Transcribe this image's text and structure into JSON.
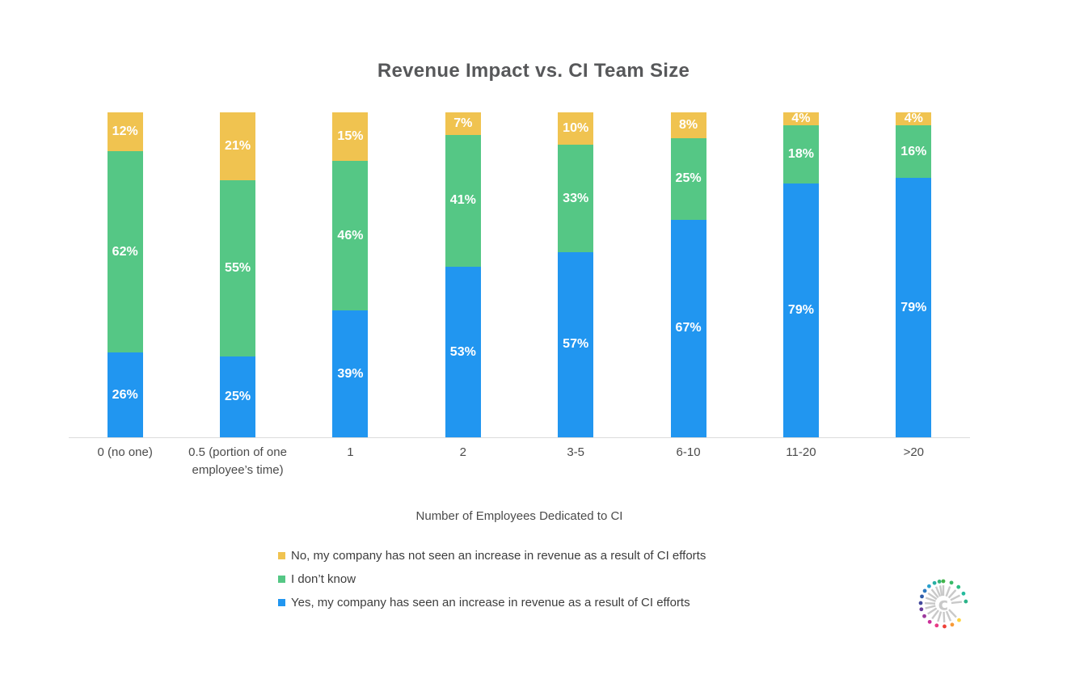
{
  "title": "Revenue Impact vs. CI Team Size",
  "chart_data": {
    "type": "bar",
    "variant": "stacked-percent-column",
    "title": "Revenue Impact vs. CI Team Size",
    "xlabel": "Number of Employees Dedicated to CI",
    "ylabel": "",
    "ylim": [
      0,
      100
    ],
    "grid": false,
    "value_suffix": "%",
    "legend_position": "bottom-left",
    "legend_order": [
      2,
      1,
      0
    ],
    "categories": [
      "0 (no one)",
      "0.5 (portion of one employee’s time)",
      "1",
      "2",
      "3-5",
      "6-10",
      "11-20",
      ">20"
    ],
    "series": [
      {
        "name": "Yes, my company has seen an increase in revenue as a result of CI efforts",
        "color": "#2196f0",
        "values": [
          26,
          25,
          39,
          53,
          57,
          67,
          79,
          79
        ]
      },
      {
        "name": "I don’t know",
        "color": "#55c785",
        "values": [
          62,
          55,
          46,
          41,
          33,
          25,
          18,
          16
        ]
      },
      {
        "name": "No, my company has not seen an increase in revenue as a result of CI efforts",
        "color": "#f0c350",
        "values": [
          12,
          21,
          15,
          7,
          10,
          8,
          4,
          4
        ]
      }
    ]
  },
  "logo": {
    "name": "crayon-starburst-logo",
    "ray_color": "#c9c9c9",
    "center_glyph": "c",
    "dots": [
      {
        "a": 0,
        "c": "#43b54b"
      },
      {
        "a": 21,
        "c": "#3aba67"
      },
      {
        "a": 42,
        "c": "#2ebd83"
      },
      {
        "a": 63,
        "c": "#25bb9e"
      },
      {
        "a": 84,
        "c": "#2bb389"
      },
      {
        "a": 136,
        "c": "#fed33d"
      },
      {
        "a": 157,
        "c": "#f79a38"
      },
      {
        "a": 177,
        "c": "#ee4138"
      },
      {
        "a": 197,
        "c": "#e83a84"
      },
      {
        "a": 217,
        "c": "#cb2f9a"
      },
      {
        "a": 237,
        "c": "#9d3a9d"
      },
      {
        "a": 256,
        "c": "#6a3d9a"
      },
      {
        "a": 272,
        "c": "#41479b"
      },
      {
        "a": 289,
        "c": "#2f5ca9"
      },
      {
        "a": 305,
        "c": "#2e79c0"
      },
      {
        "a": 321,
        "c": "#29a0cd"
      },
      {
        "a": 337,
        "c": "#28afa4"
      },
      {
        "a": 350,
        "c": "#35b377"
      }
    ]
  }
}
